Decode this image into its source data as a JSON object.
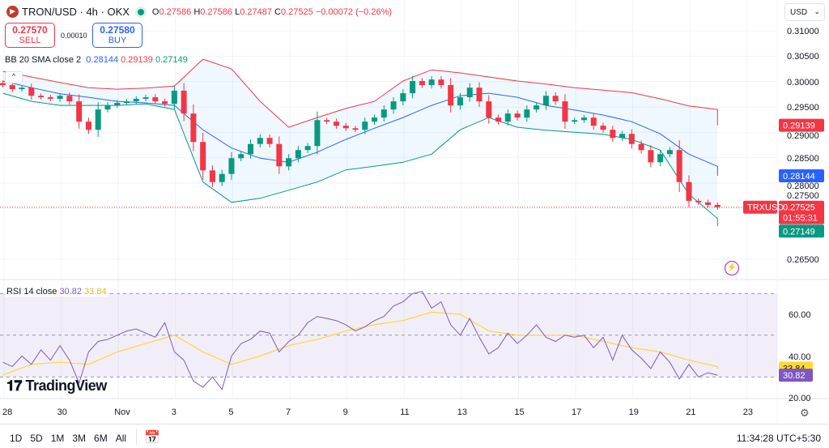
{
  "header": {
    "symbol": "TRON/USD · 4h · OKX",
    "ohlc": {
      "o_label": "O",
      "o": "0.27586",
      "h_label": "H",
      "h": "0.27586",
      "l_label": "L",
      "l": "0.27487",
      "c_label": "C",
      "c": "0.27525",
      "change": "−0.00072 (−0.26%)"
    }
  },
  "trade": {
    "sell_price": "0.27570",
    "sell_label": "SELL",
    "spread": "0.00010",
    "buy_price": "0.27580",
    "buy_label": "BUY"
  },
  "bb_legend": {
    "label": "BB 20 SMA close 2",
    "basis": "0.28144",
    "upper": "0.29139",
    "lower": "0.27149"
  },
  "rsi_legend": {
    "label": "RSI 14 close",
    "rsi": "30.82",
    "ma": "33.84"
  },
  "currency": "USD",
  "price_labels": {
    "upper": "0.29139",
    "basis": "0.28144",
    "last": "0.27525",
    "countdown": "01:55:31",
    "lower": "0.27149",
    "symbol_tag": "TRXUSD"
  },
  "rsi_labels": {
    "ma": "33.84",
    "rsi": "30.82"
  },
  "brand": "TradingView",
  "toolbar": {
    "ranges": [
      "1D",
      "5D",
      "1M",
      "3M",
      "6M",
      "All"
    ],
    "clock": "11:34:28 UTC+5:30"
  },
  "icons": {
    "logo": "tron-logo-icon",
    "bolt": "lightning-icon",
    "calendar": "calendar-range-icon",
    "gear": "settings-icon",
    "collapse": "chevron-up-icon"
  },
  "colors": {
    "up": "#089981",
    "down": "#f23645",
    "bb_upper": "#f23645",
    "bb_basis": "#2962ff",
    "bb_lower": "#089981",
    "rsi": "#7e57c2",
    "rsi_ma": "#fdd835"
  },
  "chart_data": {
    "type": "candlestick",
    "price_axis": {
      "ticks": [
        "0.31000",
        "0.30500",
        "0.30000",
        "0.29500",
        "0.29000",
        "0.28500",
        "0.28000",
        "0.27500",
        "0.26500"
      ],
      "range": [
        0.2625,
        0.3126
      ]
    },
    "rsi_axis": {
      "ticks": [
        "60.00",
        "40.00",
        "20.00"
      ],
      "levels": [
        70,
        50,
        30
      ],
      "range": [
        16,
        76
      ]
    },
    "x_ticks": [
      "28",
      "30",
      "Nov",
      "3",
      "5",
      "7",
      "9",
      "11",
      "13",
      "15",
      "17",
      "19",
      "21",
      "23"
    ],
    "closes": [
      0.2993,
      0.2985,
      0.2988,
      0.2972,
      0.2969,
      0.2966,
      0.2972,
      0.2961,
      0.2921,
      0.2905,
      0.2945,
      0.2953,
      0.2958,
      0.2961,
      0.2966,
      0.2969,
      0.2961,
      0.2956,
      0.2982,
      0.2937,
      0.2881,
      0.2825,
      0.2802,
      0.2818,
      0.2849,
      0.2857,
      0.2877,
      0.2889,
      0.2877,
      0.2833,
      0.2849,
      0.2865,
      0.2873,
      0.2924,
      0.2921,
      0.2913,
      0.2908,
      0.2905,
      0.2921,
      0.2929,
      0.2945,
      0.2961,
      0.2977,
      0.3001,
      0.2993,
      0.3004,
      0.2993,
      0.2953,
      0.2969,
      0.2988,
      0.2961,
      0.2929,
      0.2921,
      0.2937,
      0.2929,
      0.2945,
      0.2953,
      0.2972,
      0.2961,
      0.2921,
      0.2924,
      0.2929,
      0.2913,
      0.2905,
      0.2889,
      0.2897,
      0.2877,
      0.2865,
      0.2841,
      0.2857,
      0.2865,
      0.2802,
      0.2765,
      0.2762,
      0.2757,
      0.27525
    ],
    "bb_upper": [
      0.302,
      0.3009,
      0.2998,
      0.2988,
      0.2985,
      0.2987,
      0.2991,
      0.3044,
      0.3025,
      0.2961,
      0.291,
      0.2929,
      0.2947,
      0.2961,
      0.3001,
      0.3023,
      0.3017,
      0.3009,
      0.3001,
      0.2995,
      0.2988,
      0.2983,
      0.2978,
      0.2966,
      0.2952,
      0.2945,
      0.29139
    ],
    "bb_basis": [
      0.3001,
      0.2988,
      0.2976,
      0.2969,
      0.2961,
      0.2958,
      0.2953,
      0.2905,
      0.2869,
      0.2849,
      0.2841,
      0.2861,
      0.2886,
      0.2908,
      0.2929,
      0.2953,
      0.2972,
      0.2977,
      0.2969,
      0.2953,
      0.2944,
      0.2934,
      0.2921,
      0.2897,
      0.2857,
      0.2833,
      0.28144
    ],
    "bb_lower": [
      0.2977,
      0.2961,
      0.2953,
      0.2953,
      0.2953,
      0.2956,
      0.2945,
      0.2802,
      0.2762,
      0.277,
      0.2786,
      0.2802,
      0.2826,
      0.2833,
      0.2841,
      0.2857,
      0.2905,
      0.2929,
      0.291,
      0.2904,
      0.29,
      0.2896,
      0.2886,
      0.2865,
      0.2778,
      0.273,
      0.27149
    ],
    "rsi": [
      37,
      35,
      40,
      36,
      43,
      38,
      45,
      38,
      27,
      42,
      47,
      48,
      50,
      52,
      53,
      51,
      49,
      56,
      42,
      38,
      28,
      25,
      30,
      24,
      40,
      46,
      48,
      52,
      51,
      42,
      47,
      50,
      56,
      59,
      58,
      57,
      55,
      52,
      54,
      57,
      59,
      64,
      66,
      70,
      71,
      63,
      66,
      55,
      50,
      58,
      49,
      41,
      44,
      51,
      46,
      50,
      55,
      49,
      47,
      50,
      49,
      50,
      44,
      49,
      38,
      50,
      43,
      39,
      34,
      42,
      37,
      29,
      36,
      30,
      32,
      30.82
    ],
    "rsi_ma": [
      31,
      36,
      37,
      36,
      42,
      46,
      50,
      42,
      36,
      40,
      45,
      48,
      52,
      55,
      57,
      61,
      60,
      52,
      50,
      50,
      50,
      47,
      44,
      42,
      38,
      35,
      33.84
    ]
  }
}
